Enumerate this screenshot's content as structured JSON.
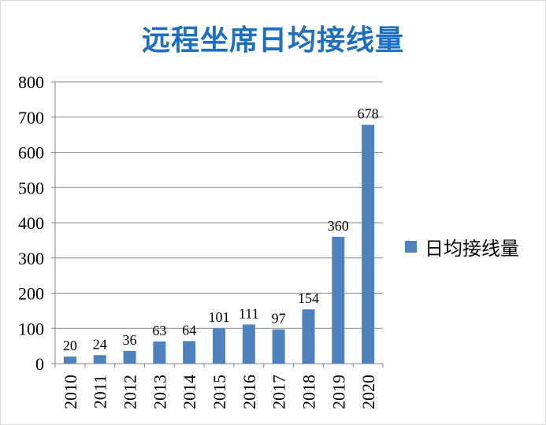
{
  "chart_data": {
    "type": "bar",
    "title": "远程坐席日均接线量",
    "categories": [
      "2010",
      "2011",
      "2012",
      "2013",
      "2014",
      "2015",
      "2016",
      "2017",
      "2018",
      "2019",
      "2020"
    ],
    "series": [
      {
        "name": "日均接线量",
        "values": [
          20,
          24,
          36,
          63,
          64,
          101,
          111,
          97,
          154,
          360,
          678
        ],
        "color": "#4f81bd"
      }
    ],
    "ylim": [
      0,
      800
    ],
    "yticks": [
      0,
      100,
      200,
      300,
      400,
      500,
      600,
      700,
      800
    ],
    "grid": true,
    "legend": "right",
    "data_labels": true
  }
}
